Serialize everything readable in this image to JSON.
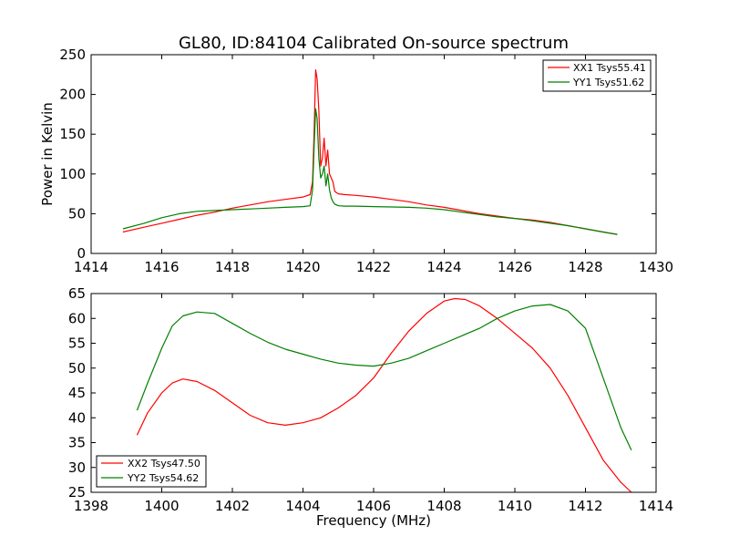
{
  "figure": {
    "title": "GL80, ID:84104 Calibrated On-source spectrum",
    "xlabel": "Frequency (MHz)"
  },
  "chart_data": [
    {
      "type": "line",
      "ylabel": "Power in Kelvin",
      "xlim": [
        1414,
        1430
      ],
      "ylim": [
        0,
        250
      ],
      "xticks": [
        1414,
        1416,
        1418,
        1420,
        1422,
        1424,
        1426,
        1428,
        1430
      ],
      "yticks": [
        0,
        50,
        100,
        150,
        200,
        250
      ],
      "legend": "top-right",
      "series": [
        {
          "name": "XX1 Tsys55.41",
          "color": "#ff0000",
          "x": [
            1414.9,
            1415.5,
            1416.0,
            1416.5,
            1417.0,
            1417.5,
            1418.0,
            1418.5,
            1419.0,
            1419.5,
            1420.0,
            1420.2,
            1420.27,
            1420.32,
            1420.36,
            1420.4,
            1420.45,
            1420.5,
            1420.55,
            1420.6,
            1420.65,
            1420.7,
            1420.75,
            1420.8,
            1420.85,
            1420.9,
            1421.0,
            1421.2,
            1421.5,
            1422.0,
            1422.5,
            1423.0,
            1423.5,
            1424.0,
            1424.5,
            1425.0,
            1425.5,
            1426.0,
            1426.5,
            1427.0,
            1427.5,
            1428.0,
            1428.5,
            1428.9
          ],
          "y": [
            27,
            33,
            38,
            43,
            48,
            52,
            57,
            61,
            65,
            68,
            71,
            74,
            90,
            160,
            231,
            220,
            180,
            110,
            120,
            145,
            110,
            130,
            100,
            95,
            90,
            78,
            75,
            74,
            73,
            71,
            68,
            65,
            61,
            58,
            54,
            50,
            47,
            44,
            42,
            39,
            35,
            31,
            27,
            24
          ]
        },
        {
          "name": "YY1 Tsys51.62",
          "color": "#008000",
          "x": [
            1414.9,
            1415.5,
            1416.0,
            1416.5,
            1417.0,
            1417.5,
            1418.0,
            1418.5,
            1419.0,
            1419.5,
            1420.0,
            1420.2,
            1420.27,
            1420.32,
            1420.36,
            1420.4,
            1420.45,
            1420.5,
            1420.55,
            1420.6,
            1420.65,
            1420.7,
            1420.75,
            1420.8,
            1420.85,
            1420.9,
            1421.0,
            1421.2,
            1421.5,
            1422.0,
            1422.5,
            1423.0,
            1423.5,
            1424.0,
            1424.5,
            1425.0,
            1425.5,
            1426.0,
            1426.5,
            1427.0,
            1427.5,
            1428.0,
            1428.5,
            1428.9
          ],
          "y": [
            31,
            38,
            45,
            50,
            53,
            54,
            55,
            56,
            57,
            58,
            59,
            60,
            80,
            140,
            182,
            170,
            120,
            95,
            100,
            110,
            85,
            100,
            80,
            70,
            65,
            62,
            60,
            59.5,
            59.5,
            59,
            58.5,
            58,
            57,
            55,
            52,
            49,
            46,
            44,
            41,
            38,
            35,
            31,
            27,
            24
          ]
        }
      ]
    },
    {
      "type": "line",
      "ylabel": "",
      "xlim": [
        1398,
        1414
      ],
      "ylim": [
        25,
        65
      ],
      "xticks": [
        1398,
        1400,
        1402,
        1404,
        1406,
        1408,
        1410,
        1412,
        1414
      ],
      "yticks": [
        25,
        30,
        35,
        40,
        45,
        50,
        55,
        60,
        65
      ],
      "legend": "bottom-left",
      "series": [
        {
          "name": "XX2 Tsys47.50",
          "color": "#ff0000",
          "x": [
            1399.3,
            1399.6,
            1400.0,
            1400.3,
            1400.6,
            1401.0,
            1401.5,
            1402.0,
            1402.5,
            1403.0,
            1403.5,
            1404.0,
            1404.5,
            1405.0,
            1405.5,
            1406.0,
            1406.5,
            1407.0,
            1407.5,
            1408.0,
            1408.3,
            1408.6,
            1409.0,
            1409.5,
            1410.0,
            1410.5,
            1411.0,
            1411.5,
            1412.0,
            1412.5,
            1413.0,
            1413.3
          ],
          "y": [
            36.5,
            41,
            45,
            47,
            47.8,
            47.3,
            45.5,
            43,
            40.5,
            39,
            38.5,
            39,
            40,
            42,
            44.5,
            48,
            53,
            57.5,
            61,
            63.5,
            64,
            63.8,
            62.5,
            60,
            57,
            54,
            50,
            44.5,
            38,
            31.5,
            27,
            25
          ]
        },
        {
          "name": "YY2 Tsys54.62",
          "color": "#008000",
          "x": [
            1399.3,
            1399.6,
            1400.0,
            1400.3,
            1400.6,
            1401.0,
            1401.5,
            1402.0,
            1402.5,
            1403.0,
            1403.5,
            1404.0,
            1404.5,
            1405.0,
            1405.5,
            1406.0,
            1406.5,
            1407.0,
            1407.5,
            1408.0,
            1408.5,
            1409.0,
            1409.5,
            1410.0,
            1410.5,
            1411.0,
            1411.5,
            1412.0,
            1412.5,
            1413.0,
            1413.3
          ],
          "y": [
            41.5,
            47,
            54,
            58.5,
            60.5,
            61.3,
            61,
            59,
            57,
            55.2,
            53.8,
            52.8,
            51.8,
            51,
            50.6,
            50.4,
            51,
            52,
            53.5,
            55,
            56.5,
            58,
            60,
            61.5,
            62.5,
            62.8,
            61.5,
            58,
            48,
            38,
            33.5
          ]
        }
      ]
    }
  ]
}
